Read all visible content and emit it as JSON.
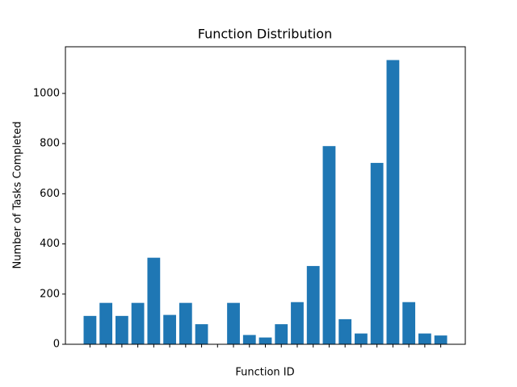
{
  "chart_data": {
    "type": "bar",
    "title": "Function Distribution",
    "x_label": "Function ID",
    "y_label": "Number of Tasks Completed",
    "categories": [
      null,
      null,
      null,
      null,
      null,
      null,
      null,
      null,
      null,
      null,
      null,
      null,
      null,
      null,
      null,
      null,
      null,
      null,
      null,
      null,
      null,
      null,
      null
    ],
    "values": [
      113,
      165,
      113,
      165,
      345,
      117,
      165,
      80,
      0,
      165,
      37,
      27,
      80,
      168,
      312,
      790,
      100,
      43,
      723,
      1133,
      168,
      43,
      35
    ],
    "color": "#1f77b4",
    "ylim": [
      0,
      1186
    ],
    "yticks": [
      0,
      200,
      400,
      600,
      800,
      1000
    ],
    "grid": false
  }
}
